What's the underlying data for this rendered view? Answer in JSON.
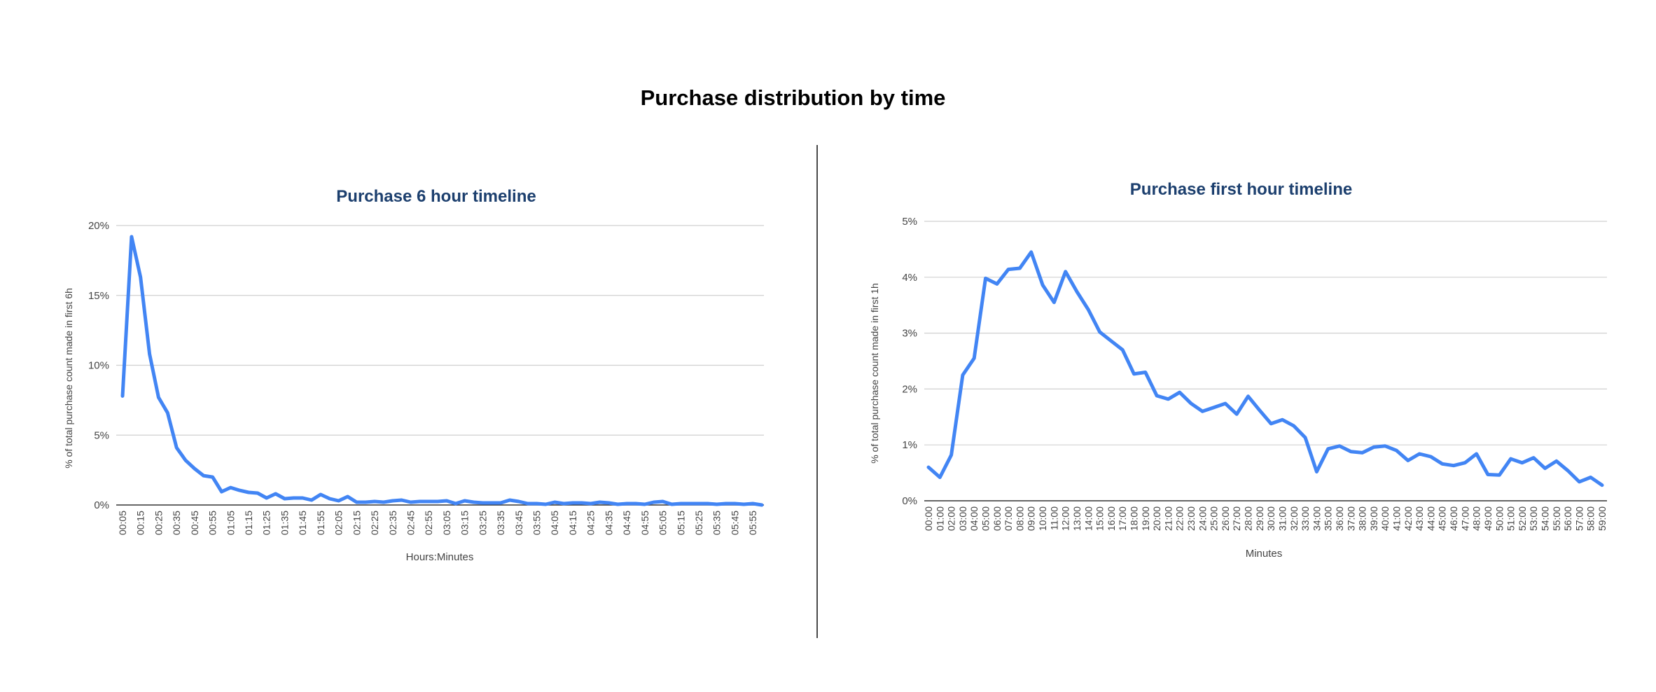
{
  "page": {
    "title": "Purchase distribution by time"
  },
  "chart_data": [
    {
      "type": "line",
      "title": "Purchase 6 hour timeline",
      "xlabel": "Hours:Minutes",
      "ylabel": "% of total purchase count made in first 6h",
      "ylim": [
        0,
        20
      ],
      "yticks": [
        "0%",
        "5%",
        "10%",
        "15%",
        "20%"
      ],
      "ytick_values": [
        0,
        5,
        10,
        15,
        20
      ],
      "grid": true,
      "color": "#4285f4",
      "x_tick_labels": [
        "00:05",
        "00:15",
        "00:25",
        "00:35",
        "00:45",
        "00:55",
        "01:05",
        "01:15",
        "01:25",
        "01:35",
        "01:45",
        "01:55",
        "02:05",
        "02:15",
        "02:25",
        "02:35",
        "02:45",
        "02:55",
        "03:05",
        "03:15",
        "03:25",
        "03:35",
        "03:45",
        "03:55",
        "04:05",
        "04:15",
        "04:25",
        "04:35",
        "04:45",
        "04:55",
        "05:05",
        "05:15",
        "05:25",
        "05:35",
        "05:45",
        "05:55"
      ],
      "x": [
        "00:05",
        "00:10",
        "00:15",
        "00:20",
        "00:25",
        "00:30",
        "00:35",
        "00:40",
        "00:45",
        "00:50",
        "00:55",
        "01:00",
        "01:05",
        "01:10",
        "01:15",
        "01:20",
        "01:25",
        "01:30",
        "01:35",
        "01:40",
        "01:45",
        "01:50",
        "01:55",
        "02:00",
        "02:05",
        "02:10",
        "02:15",
        "02:20",
        "02:25",
        "02:30",
        "02:35",
        "02:40",
        "02:45",
        "02:50",
        "02:55",
        "03:00",
        "03:05",
        "03:10",
        "03:15",
        "03:20",
        "03:25",
        "03:30",
        "03:35",
        "03:40",
        "03:45",
        "03:50",
        "03:55",
        "04:00",
        "04:05",
        "04:10",
        "04:15",
        "04:20",
        "04:25",
        "04:30",
        "04:35",
        "04:40",
        "04:45",
        "04:50",
        "04:55",
        "05:00",
        "05:05",
        "05:10",
        "05:15",
        "05:20",
        "05:25",
        "05:30",
        "05:35",
        "05:40",
        "05:45",
        "05:50",
        "05:55",
        "06:00"
      ],
      "values": [
        7.8,
        19.2,
        16.3,
        10.8,
        7.7,
        6.6,
        4.1,
        3.2,
        2.6,
        2.1,
        2.0,
        0.95,
        1.25,
        1.05,
        0.9,
        0.85,
        0.5,
        0.8,
        0.45,
        0.5,
        0.5,
        0.35,
        0.75,
        0.45,
        0.3,
        0.6,
        0.2,
        0.2,
        0.25,
        0.2,
        0.3,
        0.35,
        0.2,
        0.25,
        0.25,
        0.25,
        0.3,
        0.1,
        0.3,
        0.2,
        0.15,
        0.15,
        0.15,
        0.35,
        0.25,
        0.1,
        0.1,
        0.05,
        0.2,
        0.1,
        0.15,
        0.15,
        0.1,
        0.2,
        0.15,
        0.05,
        0.1,
        0.1,
        0.05,
        0.2,
        0.25,
        0.05,
        0.1,
        0.1,
        0.1,
        0.1,
        0.05,
        0.1,
        0.1,
        0.05,
        0.1,
        0.0
      ]
    },
    {
      "type": "line",
      "title": "Purchase first hour timeline",
      "xlabel": "Minutes",
      "ylabel": "% of total purchase count made in first 1h",
      "ylim": [
        0,
        5
      ],
      "yticks": [
        "0%",
        "1%",
        "2%",
        "3%",
        "4%",
        "5%"
      ],
      "ytick_values": [
        0,
        1,
        2,
        3,
        4,
        5
      ],
      "grid": true,
      "color": "#4285f4",
      "x": [
        "00:00",
        "01:00",
        "02:00",
        "03:00",
        "04:00",
        "05:00",
        "06:00",
        "07:00",
        "08:00",
        "09:00",
        "10:00",
        "11:00",
        "12:00",
        "13:00",
        "14:00",
        "15:00",
        "16:00",
        "17:00",
        "18:00",
        "19:00",
        "20:00",
        "21:00",
        "22:00",
        "23:00",
        "24:00",
        "25:00",
        "26:00",
        "27:00",
        "28:00",
        "29:00",
        "30:00",
        "31:00",
        "32:00",
        "33:00",
        "34:00",
        "35:00",
        "36:00",
        "37:00",
        "38:00",
        "39:00",
        "40:00",
        "41:00",
        "42:00",
        "43:00",
        "44:00",
        "45:00",
        "46:00",
        "47:00",
        "48:00",
        "49:00",
        "50:00",
        "51:00",
        "52:00",
        "53:00",
        "54:00",
        "55:00",
        "56:00",
        "57:00",
        "58:00",
        "59:00"
      ],
      "values": [
        0.6,
        0.42,
        0.82,
        2.25,
        2.55,
        3.98,
        3.88,
        4.14,
        4.16,
        4.45,
        3.86,
        3.55,
        4.1,
        3.74,
        3.42,
        3.02,
        2.86,
        2.7,
        2.27,
        2.3,
        1.88,
        1.82,
        1.94,
        1.74,
        1.6,
        1.67,
        1.74,
        1.55,
        1.87,
        1.62,
        1.38,
        1.45,
        1.34,
        1.13,
        0.52,
        0.93,
        0.98,
        0.88,
        0.86,
        0.96,
        0.98,
        0.9,
        0.72,
        0.84,
        0.79,
        0.66,
        0.63,
        0.68,
        0.84,
        0.47,
        0.46,
        0.75,
        0.68,
        0.77,
        0.58,
        0.71,
        0.54,
        0.34,
        0.42,
        0.28
      ]
    }
  ]
}
